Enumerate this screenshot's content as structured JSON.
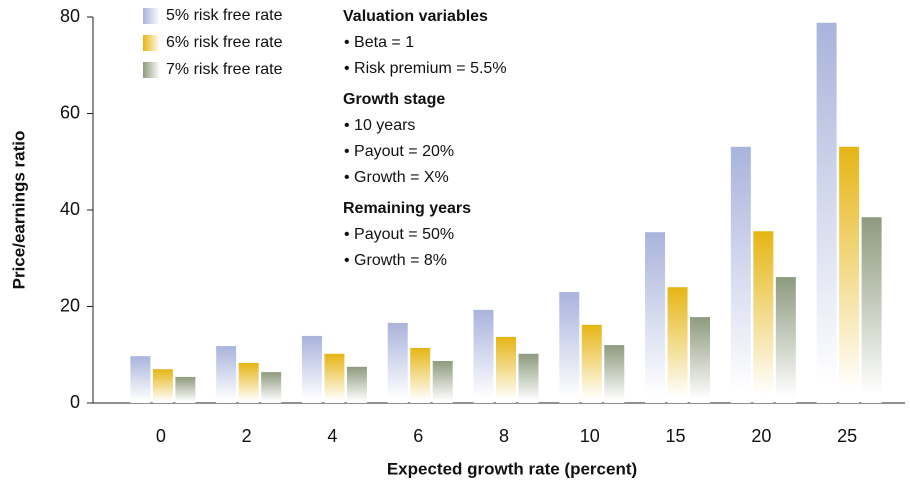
{
  "chart_data": {
    "type": "bar",
    "xlabel": "Expected growth rate (percent)",
    "ylabel": "Price/earnings ratio",
    "categories": [
      "0",
      "2",
      "4",
      "6",
      "8",
      "10",
      "15",
      "20",
      "25"
    ],
    "series": [
      {
        "name": "5% risk free rate",
        "color": "#a9b3dc",
        "values": [
          9.7,
          11.8,
          13.9,
          16.6,
          19.3,
          23.0,
          35.4,
          53.1,
          78.8
        ]
      },
      {
        "name": "6% risk free rate",
        "color": "#e6b514",
        "values": [
          7.0,
          8.3,
          10.2,
          11.4,
          13.7,
          16.2,
          24.0,
          35.6,
          53.1
        ]
      },
      {
        "name": "7% risk free rate",
        "color": "#8e9a7e",
        "values": [
          5.4,
          6.4,
          7.5,
          8.7,
          10.2,
          12.0,
          17.8,
          26.1,
          38.5
        ]
      }
    ],
    "ylim": [
      0,
      80
    ],
    "yticks": [
      0,
      20,
      40,
      60,
      80
    ],
    "legend": "upper left",
    "annotations": [
      {
        "heading": "Valuation variables",
        "items": [
          "• Beta = 1",
          "• Risk premium = 5.5%"
        ]
      },
      {
        "heading": "Growth stage",
        "items": [
          "• 10 years",
          "• Payout = 20%",
          "• Growth = X%"
        ]
      },
      {
        "heading": "Remaining years",
        "items": [
          "• Payout = 50%",
          "• Growth = 8%"
        ]
      }
    ]
  }
}
